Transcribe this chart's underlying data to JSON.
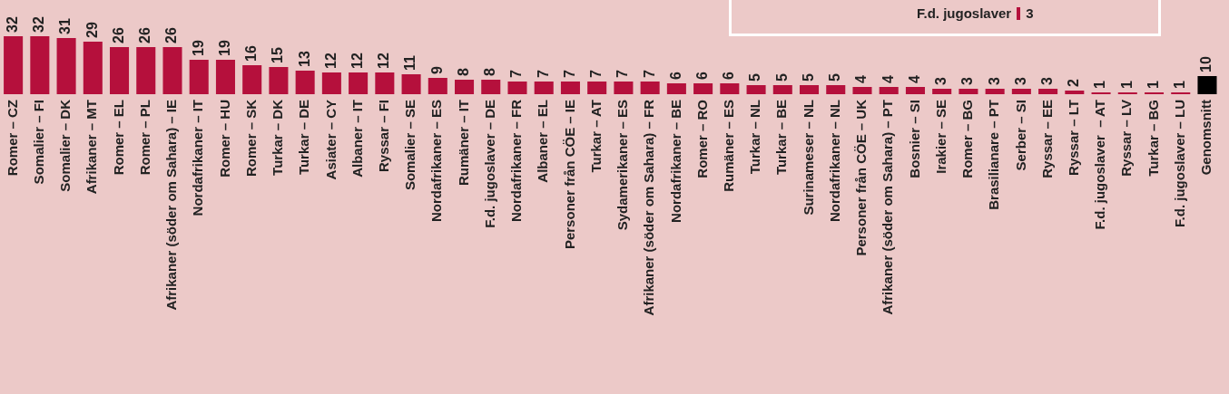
{
  "chart_data": {
    "type": "bar",
    "categories": [
      "Romer – CZ",
      "Somalier – FI",
      "Somalier – DK",
      "Afrikaner – MT",
      "Romer – EL",
      "Romer – PL",
      "Afrikaner (söder om Sahara) – IE",
      "Nordafrikaner – IT",
      "Romer – HU",
      "Romer – SK",
      "Turkar – DK",
      "Turkar – DE",
      "Asiater – CY",
      "Albaner – IT",
      "Ryssar – FI",
      "Somalier – SE",
      "Nordafrikaner – ES",
      "Rumäner – IT",
      "F.d. jugoslaver – DE",
      "Nordafrikaner – FR",
      "Albaner – EL",
      "Personer från CÖE – IE",
      "Turkar – AT",
      "Sydamerikaner – ES",
      "Afrikaner (söder om Sahara) – FR",
      "Nordafrikaner – BE",
      "Romer – RO",
      "Rumäner – ES",
      "Turkar – NL",
      "Turkar – BE",
      "Surinameser – NL",
      "Nordafrikaner – NL",
      "Personer från CÖE – UK",
      "Afrikaner (söder om Sahara) – PT",
      "Bosnier – SI",
      "Irakier – SE",
      "Romer – BG",
      "Brasilianare – PT",
      "Serber – SI",
      "Ryssar – EE",
      "Ryssar – LT",
      "F.d. jugoslaver  – AT",
      "Ryssar – LV",
      "Turkar – BG",
      "F.d. jugoslaver – LU",
      "Genomsnitt"
    ],
    "values": [
      32,
      32,
      31,
      29,
      26,
      26,
      26,
      19,
      19,
      16,
      15,
      13,
      12,
      12,
      12,
      11,
      9,
      8,
      8,
      7,
      7,
      7,
      7,
      7,
      7,
      6,
      6,
      6,
      5,
      5,
      5,
      5,
      4,
      4,
      4,
      3,
      3,
      3,
      3,
      3,
      2,
      1,
      1,
      1,
      1,
      10
    ],
    "colors": [
      "#b5103c",
      "#b5103c",
      "#b5103c",
      "#b5103c",
      "#b5103c",
      "#b5103c",
      "#b5103c",
      "#b5103c",
      "#b5103c",
      "#b5103c",
      "#b5103c",
      "#b5103c",
      "#b5103c",
      "#b5103c",
      "#b5103c",
      "#b5103c",
      "#b5103c",
      "#b5103c",
      "#b5103c",
      "#b5103c",
      "#b5103c",
      "#b5103c",
      "#b5103c",
      "#b5103c",
      "#b5103c",
      "#b5103c",
      "#b5103c",
      "#b5103c",
      "#b5103c",
      "#b5103c",
      "#b5103c",
      "#b5103c",
      "#b5103c",
      "#b5103c",
      "#b5103c",
      "#b5103c",
      "#b5103c",
      "#b5103c",
      "#b5103c",
      "#b5103c",
      "#b5103c",
      "#b5103c",
      "#b5103c",
      "#b5103c",
      "#b5103c",
      "#000000"
    ],
    "data_labels": true,
    "annotations": [
      "F.d. jugoslaver",
      "3"
    ]
  }
}
